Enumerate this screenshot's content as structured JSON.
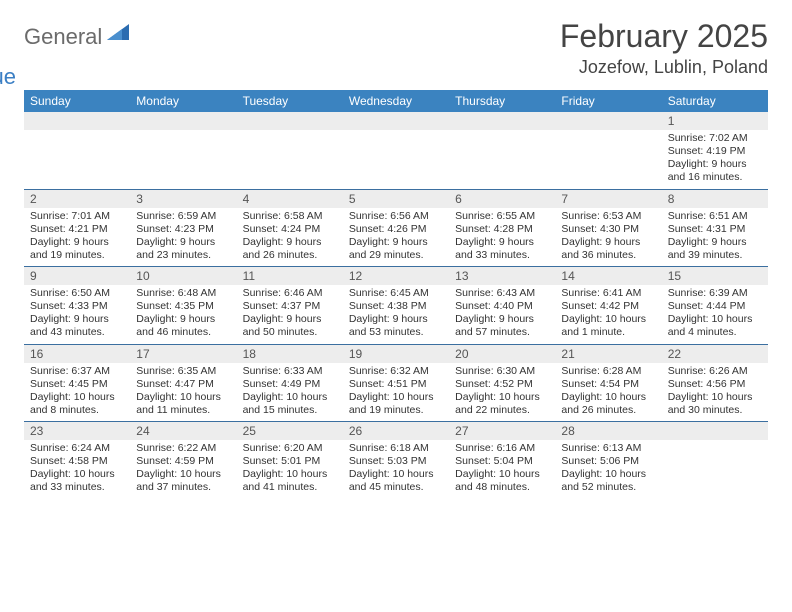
{
  "logo": {
    "general": "General",
    "blue": "Blue",
    "triangle_color": "#2b6cb0"
  },
  "header": {
    "month_title": "February 2025",
    "location": "Jozefow, Lublin, Poland"
  },
  "colors": {
    "header_bar": "#3b83c0",
    "row_divider": "#3b6fa0",
    "daynum_bg": "#ededed"
  },
  "weekdays": [
    "Sunday",
    "Monday",
    "Tuesday",
    "Wednesday",
    "Thursday",
    "Friday",
    "Saturday"
  ],
  "weeks": [
    [
      null,
      null,
      null,
      null,
      null,
      null,
      {
        "n": "1",
        "sunrise": "Sunrise: 7:02 AM",
        "sunset": "Sunset: 4:19 PM",
        "daylight": "Daylight: 9 hours and 16 minutes."
      }
    ],
    [
      {
        "n": "2",
        "sunrise": "Sunrise: 7:01 AM",
        "sunset": "Sunset: 4:21 PM",
        "daylight": "Daylight: 9 hours and 19 minutes."
      },
      {
        "n": "3",
        "sunrise": "Sunrise: 6:59 AM",
        "sunset": "Sunset: 4:23 PM",
        "daylight": "Daylight: 9 hours and 23 minutes."
      },
      {
        "n": "4",
        "sunrise": "Sunrise: 6:58 AM",
        "sunset": "Sunset: 4:24 PM",
        "daylight": "Daylight: 9 hours and 26 minutes."
      },
      {
        "n": "5",
        "sunrise": "Sunrise: 6:56 AM",
        "sunset": "Sunset: 4:26 PM",
        "daylight": "Daylight: 9 hours and 29 minutes."
      },
      {
        "n": "6",
        "sunrise": "Sunrise: 6:55 AM",
        "sunset": "Sunset: 4:28 PM",
        "daylight": "Daylight: 9 hours and 33 minutes."
      },
      {
        "n": "7",
        "sunrise": "Sunrise: 6:53 AM",
        "sunset": "Sunset: 4:30 PM",
        "daylight": "Daylight: 9 hours and 36 minutes."
      },
      {
        "n": "8",
        "sunrise": "Sunrise: 6:51 AM",
        "sunset": "Sunset: 4:31 PM",
        "daylight": "Daylight: 9 hours and 39 minutes."
      }
    ],
    [
      {
        "n": "9",
        "sunrise": "Sunrise: 6:50 AM",
        "sunset": "Sunset: 4:33 PM",
        "daylight": "Daylight: 9 hours and 43 minutes."
      },
      {
        "n": "10",
        "sunrise": "Sunrise: 6:48 AM",
        "sunset": "Sunset: 4:35 PM",
        "daylight": "Daylight: 9 hours and 46 minutes."
      },
      {
        "n": "11",
        "sunrise": "Sunrise: 6:46 AM",
        "sunset": "Sunset: 4:37 PM",
        "daylight": "Daylight: 9 hours and 50 minutes."
      },
      {
        "n": "12",
        "sunrise": "Sunrise: 6:45 AM",
        "sunset": "Sunset: 4:38 PM",
        "daylight": "Daylight: 9 hours and 53 minutes."
      },
      {
        "n": "13",
        "sunrise": "Sunrise: 6:43 AM",
        "sunset": "Sunset: 4:40 PM",
        "daylight": "Daylight: 9 hours and 57 minutes."
      },
      {
        "n": "14",
        "sunrise": "Sunrise: 6:41 AM",
        "sunset": "Sunset: 4:42 PM",
        "daylight": "Daylight: 10 hours and 1 minute."
      },
      {
        "n": "15",
        "sunrise": "Sunrise: 6:39 AM",
        "sunset": "Sunset: 4:44 PM",
        "daylight": "Daylight: 10 hours and 4 minutes."
      }
    ],
    [
      {
        "n": "16",
        "sunrise": "Sunrise: 6:37 AM",
        "sunset": "Sunset: 4:45 PM",
        "daylight": "Daylight: 10 hours and 8 minutes."
      },
      {
        "n": "17",
        "sunrise": "Sunrise: 6:35 AM",
        "sunset": "Sunset: 4:47 PM",
        "daylight": "Daylight: 10 hours and 11 minutes."
      },
      {
        "n": "18",
        "sunrise": "Sunrise: 6:33 AM",
        "sunset": "Sunset: 4:49 PM",
        "daylight": "Daylight: 10 hours and 15 minutes."
      },
      {
        "n": "19",
        "sunrise": "Sunrise: 6:32 AM",
        "sunset": "Sunset: 4:51 PM",
        "daylight": "Daylight: 10 hours and 19 minutes."
      },
      {
        "n": "20",
        "sunrise": "Sunrise: 6:30 AM",
        "sunset": "Sunset: 4:52 PM",
        "daylight": "Daylight: 10 hours and 22 minutes."
      },
      {
        "n": "21",
        "sunrise": "Sunrise: 6:28 AM",
        "sunset": "Sunset: 4:54 PM",
        "daylight": "Daylight: 10 hours and 26 minutes."
      },
      {
        "n": "22",
        "sunrise": "Sunrise: 6:26 AM",
        "sunset": "Sunset: 4:56 PM",
        "daylight": "Daylight: 10 hours and 30 minutes."
      }
    ],
    [
      {
        "n": "23",
        "sunrise": "Sunrise: 6:24 AM",
        "sunset": "Sunset: 4:58 PM",
        "daylight": "Daylight: 10 hours and 33 minutes."
      },
      {
        "n": "24",
        "sunrise": "Sunrise: 6:22 AM",
        "sunset": "Sunset: 4:59 PM",
        "daylight": "Daylight: 10 hours and 37 minutes."
      },
      {
        "n": "25",
        "sunrise": "Sunrise: 6:20 AM",
        "sunset": "Sunset: 5:01 PM",
        "daylight": "Daylight: 10 hours and 41 minutes."
      },
      {
        "n": "26",
        "sunrise": "Sunrise: 6:18 AM",
        "sunset": "Sunset: 5:03 PM",
        "daylight": "Daylight: 10 hours and 45 minutes."
      },
      {
        "n": "27",
        "sunrise": "Sunrise: 6:16 AM",
        "sunset": "Sunset: 5:04 PM",
        "daylight": "Daylight: 10 hours and 48 minutes."
      },
      {
        "n": "28",
        "sunrise": "Sunrise: 6:13 AM",
        "sunset": "Sunset: 5:06 PM",
        "daylight": "Daylight: 10 hours and 52 minutes."
      },
      null
    ]
  ]
}
